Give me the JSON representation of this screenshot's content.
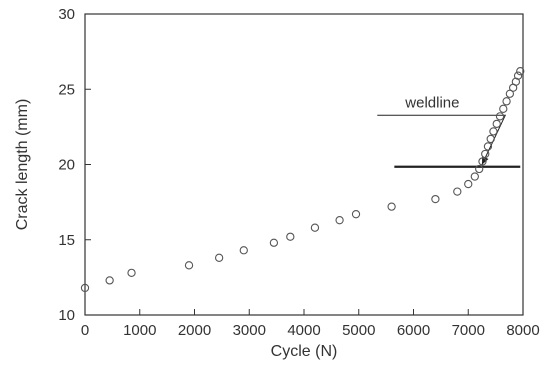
{
  "chart_data": {
    "type": "scatter",
    "title": "",
    "xlabel": "Cycle (N)",
    "ylabel": "Crack length (mm)",
    "xlim": [
      0,
      8000
    ],
    "ylim": [
      10,
      30
    ],
    "x_ticks": [
      0,
      1000,
      2000,
      3000,
      4000,
      5000,
      6000,
      7000,
      8000
    ],
    "y_ticks": [
      10,
      15,
      20,
      25,
      30
    ],
    "grid": false,
    "legend": "none",
    "marker": "open-circle",
    "colors": {
      "marker": "#555555",
      "axis": "#333333",
      "line": "#222222"
    },
    "series": [
      {
        "x": [
          0,
          450,
          850,
          1900,
          2450,
          2900,
          3450,
          3750,
          4200,
          4650,
          4950,
          5600,
          6400,
          6800,
          7000,
          7120,
          7200,
          7260,
          7310,
          7360,
          7410,
          7460,
          7520,
          7580,
          7640,
          7700,
          7760,
          7820,
          7870,
          7910,
          7950
        ],
        "y": [
          11.8,
          12.3,
          12.8,
          13.3,
          13.8,
          14.3,
          14.8,
          15.2,
          15.8,
          16.3,
          16.7,
          17.2,
          17.7,
          18.2,
          18.7,
          19.2,
          19.7,
          20.2,
          20.7,
          21.2,
          21.7,
          22.2,
          22.7,
          23.2,
          23.7,
          24.2,
          24.7,
          25.1,
          25.5,
          25.9,
          26.2
        ]
      }
    ],
    "reference_line": {
      "y": 19.85,
      "x_start": 5650,
      "x_end": 7950
    },
    "annotations": [
      {
        "text": "weldline",
        "x": 5850,
        "y": 23.8,
        "arrow_to": {
          "x": 7250,
          "y": 19.85
        }
      }
    ]
  }
}
